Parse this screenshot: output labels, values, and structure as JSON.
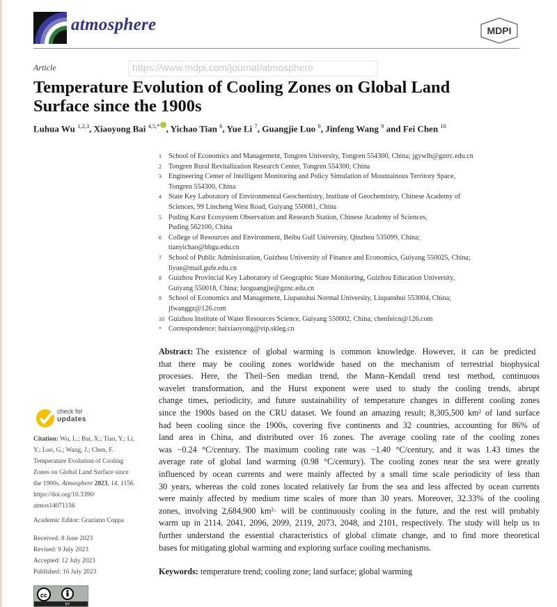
{
  "header": {
    "journal": "atmosphere",
    "publisher_logo": "MDPI",
    "article_type": "Article",
    "url_overlay": "https://www.mdpi.com/journal/atmosphere"
  },
  "title_lines": [
    "Temperature Evolution of Cooling Zones on Global Land",
    "Surface since the 1900s"
  ],
  "authors": [
    {
      "name": "Luhua Wu",
      "sup": "1,2,3"
    },
    {
      "name": "Xiaoyong Bai",
      "sup": "4,5,*"
    },
    {
      "name": "Yichao Tian",
      "sup": "6"
    },
    {
      "name": "Yue Li",
      "sup": "7"
    },
    {
      "name": "Guangjie Luo",
      "sup": "8"
    },
    {
      "name": "Jinfeng Wang",
      "sup": "9"
    },
    {
      "name": "Fei Chen",
      "sup": "10"
    }
  ],
  "authors_and": "and",
  "affiliations": [
    {
      "n": "1",
      "lines": [
        "School of Economics and Management, Tongren University, Tongren 554300, China; jgywlh@gztrc.edu.cn"
      ]
    },
    {
      "n": "2",
      "lines": [
        "Tongren Rural Revitalization Research Center, Tongren 554300, China"
      ]
    },
    {
      "n": "3",
      "lines": [
        "Engineering Center of Intelligent Monitoring and Policy Simulation of Mountainous Territory Space,",
        "Tongren 554300, China"
      ]
    },
    {
      "n": "4",
      "lines": [
        "State Key Laboratory of Environmental Geochemistry, Institute of Geochemistry, Chinese Academy of",
        "Sciences, 99 Lincheng West Road, Guiyang 550081, China"
      ]
    },
    {
      "n": "5",
      "lines": [
        "Puding Karst Ecosystem Observation and Research Station, Chinese Academy of Sciences,",
        "Puding 562100, China"
      ]
    },
    {
      "n": "6",
      "lines": [
        "College of Resources and Environment, Beibu Gulf University, Qinzhou 535099, China;",
        "tianyichao@bbgu.edu.cn"
      ]
    },
    {
      "n": "7",
      "lines": [
        "School of Public Administration, Guizhou University of Finance and Economics, Guiyang 550025, China;",
        "liyue@mail.gufe.edu.cn"
      ]
    },
    {
      "n": "8",
      "lines": [
        "Guizhou Provincial Key Laboratory of Geographic State Monitoring, Guizhou Education University,",
        "Guiyang 550018, China; luoguangjie@gznc.edu.cn"
      ]
    },
    {
      "n": "9",
      "lines": [
        "School of Economics and Management, Liupanshui Normal University, Liupanshui 553004, China;",
        "jfwanggz@126.com"
      ]
    },
    {
      "n": "10",
      "lines": [
        "Guizhou Institute of Water Resources Science, Guiyang 550002, China; chenfeicn@126.com"
      ]
    },
    {
      "n": "*",
      "lines": [
        "Correspondence: baixiaoyong@vip.skleg.cn"
      ]
    }
  ],
  "abstract": {
    "label": "Abstract:",
    "lines": [
      "The existence of global warming is common knowledge. However, it can be predicted",
      "that there may be cooling zones worldwide based on the mechanism of terrestrial biophysical",
      "processes. Here, the Theil–Sen median trend, the Mann–Kendall trend test method, continuous",
      "wavelet transformation, and the Hurst exponent were used to study the cooling trends, abrupt",
      "change times, periodicity, and future sustainability of temperature changes in different cooling zones",
      "since the 1900s based on the CRU dataset. We found an amazing result; 8,305,500 km² of land surface",
      "had been cooling since the 1900s, covering five continents and 32 countries, accounting for 86% of",
      "land area in China, and distributed over 16 zones. The average cooling rate of the cooling zones",
      "was −0.24 °C/century. The maximum cooling rate was −1.40 °C/century, and it was 1.43 times the",
      "average rate of global land warming (0.98 °C/century). The cooling zones near the sea were greatly",
      "influenced by ocean currents and were mainly affected by a small time scale periodicity of less than",
      "30 years, whereas the cold zones located relatively far from the sea and less affected by ocean currents",
      "were mainly affected by medium time scales of more than 30 years. Moreover, 32.33% of the cooling",
      "zones, involving 2,684,900 km²· will be continuously cooling in the future, and the rest will probably",
      "warm up in 2114, 2041, 2096, 2099, 2119, 2073, 2048, and 2101, respectively. The study will help us to",
      "further understand the essential characteristics of global climate change, and to find more theoretical",
      "bases for mitigating global warming and exploring surface cooling mechanisms."
    ]
  },
  "keywords": {
    "label": "Keywords:",
    "text": "temperature trend; cooling zone; land surface; global warming"
  },
  "sidebar": {
    "check_updates": [
      "check for",
      "updates"
    ],
    "citation_label": "Citation:",
    "citation_lines": [
      "Wu, L.; Bai, X.; Tian, Y.; Li,",
      "Y.; Luo, G.; Wang, J.; Chen, F.",
      "Temperature Evolution of Cooling",
      "Zones on Global Land Surface since",
      "the 1900s."
    ],
    "citation_journal": "Atmosphere",
    "citation_year": "2023",
    "citation_volume": "14",
    "citation_page": ", 1156.",
    "citation_doi_lines": [
      "https://doi.org/10.3390/",
      "atmos14071156"
    ],
    "academic_editor": "Academic Editor: Graziano Coppa",
    "dates": [
      "Received: 8 June 2023",
      "Revised: 9 July 2023",
      "Accepted: 12 July 2023",
      "Published: 16 July 2023"
    ],
    "license_badge": "CC BY"
  },
  "colors": {
    "journal": "#33338a",
    "check_updates": "#f2c200",
    "orcid": "#a6ce39"
  }
}
